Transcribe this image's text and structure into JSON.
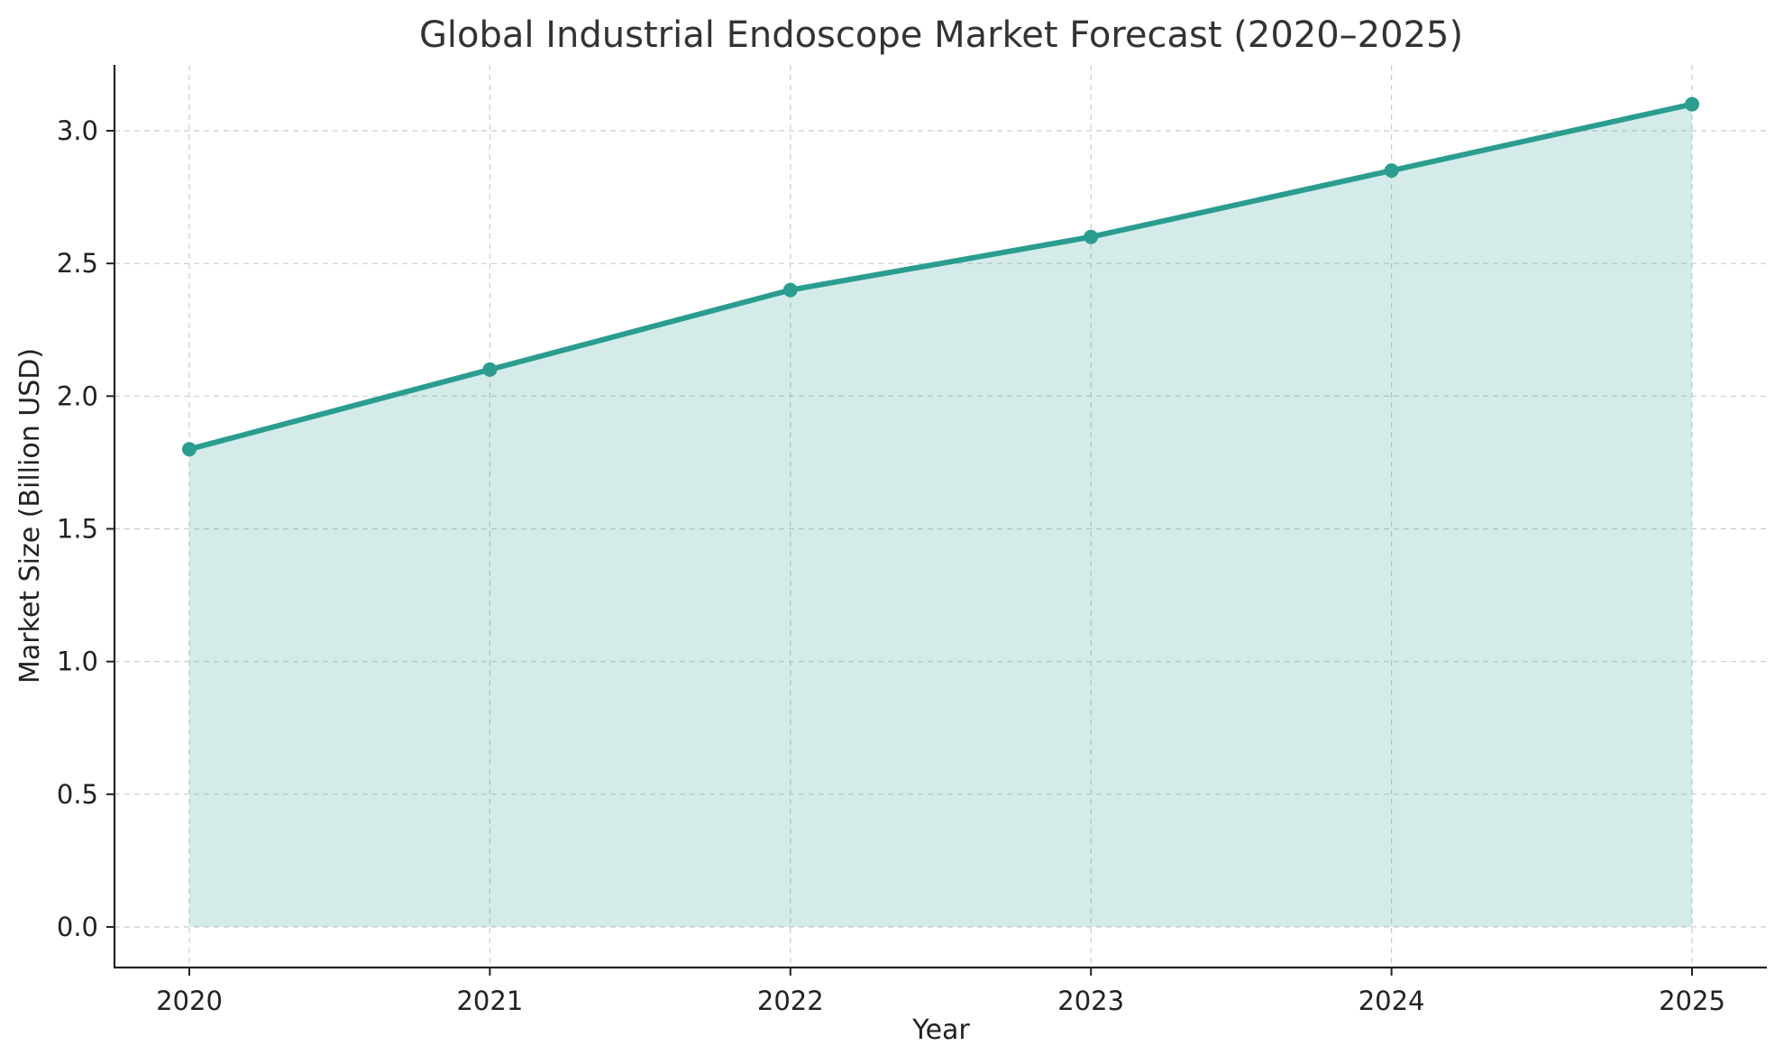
{
  "chart_data": {
    "type": "area",
    "title": "Global Industrial Endoscope Market Forecast (2020–2025)",
    "xlabel": "Year",
    "ylabel": "Market Size (Billion USD)",
    "x": [
      "2020",
      "2021",
      "2022",
      "2023",
      "2024",
      "2025"
    ],
    "series": [
      {
        "values": [
          1.8,
          2.1,
          2.4,
          2.6,
          2.85,
          3.1
        ]
      }
    ],
    "yticks": [
      "0.0",
      "0.5",
      "1.0",
      "1.5",
      "2.0",
      "2.5",
      "3.0"
    ],
    "ylim": [
      -0.15,
      3.25
    ],
    "grid": true,
    "line_color": "#2a9d8f",
    "fill_color": "#2a9d8f",
    "fill_opacity": 0.2
  }
}
